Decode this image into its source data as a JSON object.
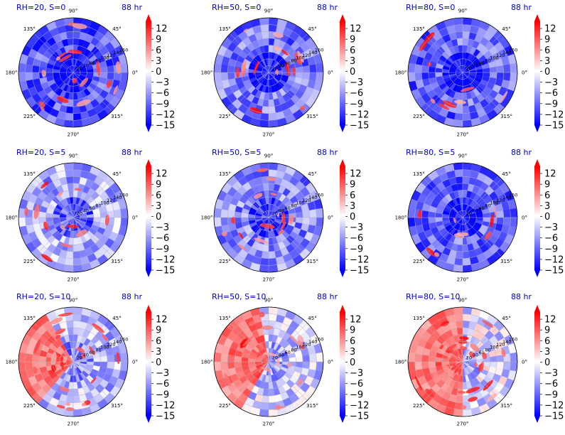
{
  "figure": {
    "layout": {
      "rows": 3,
      "cols": 3
    },
    "time_label": "88 hr",
    "colors": {
      "title": "#0000cc",
      "negative": "#0000ff",
      "neutral": "#ffffff",
      "positive": "#ff0000"
    }
  },
  "chart_data": [
    {
      "type": "heatmap",
      "projection": "polar",
      "title": "RH=20, S=0",
      "time_label": "88 hr",
      "rh": 20,
      "s": 0,
      "angle_ticks": [
        "90°",
        "45°",
        "0°",
        "315°",
        "270°",
        "225°",
        "180°",
        "135°"
      ],
      "radial_ticks": [
        20,
        40,
        60,
        80,
        100,
        120,
        140,
        160
      ],
      "rlim": [
        0,
        160
      ],
      "grid": true,
      "colorbar": {
        "ticks": [
          12,
          9,
          6,
          3,
          0,
          -3,
          -6,
          -9,
          -12,
          -15
        ],
        "range": [
          -15,
          14
        ],
        "extend": "both",
        "cmap": "bwr"
      }
    },
    {
      "type": "heatmap",
      "projection": "polar",
      "title": "RH=50, S=0",
      "time_label": "88 hr",
      "rh": 50,
      "s": 0,
      "angle_ticks": [
        "90°",
        "45°",
        "0°",
        "315°",
        "270°",
        "225°",
        "180°",
        "135°"
      ],
      "radial_ticks": [
        20,
        40,
        60,
        80,
        100,
        120,
        140,
        160
      ],
      "rlim": [
        0,
        160
      ],
      "grid": true,
      "colorbar": {
        "ticks": [
          12,
          9,
          6,
          3,
          0,
          -3,
          -6,
          -9,
          -12,
          -15
        ],
        "range": [
          -15,
          14
        ],
        "extend": "both",
        "cmap": "bwr"
      }
    },
    {
      "type": "heatmap",
      "projection": "polar",
      "title": "RH=80, S=0",
      "time_label": "88 hr",
      "rh": 80,
      "s": 0,
      "angle_ticks": [
        "90°",
        "45°",
        "0°",
        "315°",
        "270°",
        "225°",
        "180°",
        "135°"
      ],
      "radial_ticks": [
        20,
        40,
        60,
        80,
        100,
        120,
        140,
        160
      ],
      "rlim": [
        0,
        160
      ],
      "grid": true,
      "colorbar": {
        "ticks": [
          12,
          9,
          6,
          3,
          0,
          -3,
          -6,
          -9,
          -12,
          -15
        ],
        "range": [
          -15,
          14
        ],
        "extend": "both",
        "cmap": "bwr"
      }
    },
    {
      "type": "heatmap",
      "projection": "polar",
      "title": "RH=20, S=5",
      "time_label": "88 hr",
      "rh": 20,
      "s": 5,
      "angle_ticks": [
        "90°",
        "45°",
        "0°",
        "315°",
        "270°",
        "225°",
        "180°",
        "135°"
      ],
      "radial_ticks": [
        20,
        40,
        60,
        80,
        100,
        120,
        140,
        160
      ],
      "rlim": [
        0,
        160
      ],
      "grid": true,
      "colorbar": {
        "ticks": [
          12,
          9,
          6,
          3,
          0,
          -3,
          -6,
          -9,
          -12,
          -15
        ],
        "range": [
          -15,
          14
        ],
        "extend": "both",
        "cmap": "bwr"
      }
    },
    {
      "type": "heatmap",
      "projection": "polar",
      "title": "RH=50, S=5",
      "time_label": "88 hr",
      "rh": 50,
      "s": 5,
      "angle_ticks": [
        "90°",
        "45°",
        "0°",
        "315°",
        "270°",
        "225°",
        "180°",
        "135°"
      ],
      "radial_ticks": [
        20,
        40,
        60,
        80,
        100,
        120,
        140,
        160
      ],
      "rlim": [
        0,
        160
      ],
      "grid": true,
      "colorbar": {
        "ticks": [
          12,
          9,
          6,
          3,
          0,
          -3,
          -6,
          -9,
          -12,
          -15
        ],
        "range": [
          -15,
          14
        ],
        "extend": "both",
        "cmap": "bwr"
      }
    },
    {
      "type": "heatmap",
      "projection": "polar",
      "title": "RH=80, S=5",
      "time_label": "88 hr",
      "rh": 80,
      "s": 5,
      "angle_ticks": [
        "90°",
        "45°",
        "0°",
        "315°",
        "270°",
        "225°",
        "180°",
        "135°"
      ],
      "radial_ticks": [
        20,
        40,
        60,
        80,
        100,
        120,
        140,
        160
      ],
      "rlim": [
        0,
        160
      ],
      "grid": true,
      "colorbar": {
        "ticks": [
          12,
          9,
          6,
          3,
          0,
          -3,
          -6,
          -9,
          -12,
          -15
        ],
        "range": [
          -15,
          14
        ],
        "extend": "both",
        "cmap": "bwr"
      }
    },
    {
      "type": "heatmap",
      "projection": "polar",
      "title": "RH=20, S=10",
      "time_label": "88 hr",
      "rh": 20,
      "s": 10,
      "angle_ticks": [
        "90°",
        "45°",
        "0°",
        "315°",
        "270°",
        "225°",
        "180°",
        "135°"
      ],
      "radial_ticks": [
        20,
        40,
        60,
        80,
        100,
        120,
        140,
        160
      ],
      "rlim": [
        0,
        160
      ],
      "grid": true,
      "colorbar": {
        "ticks": [
          12,
          9,
          6,
          3,
          0,
          -3,
          -6,
          -9,
          -12,
          -15
        ],
        "range": [
          -15,
          14
        ],
        "extend": "both",
        "cmap": "bwr"
      }
    },
    {
      "type": "heatmap",
      "projection": "polar",
      "title": "RH=50, S=10",
      "time_label": "88 hr",
      "rh": 50,
      "s": 10,
      "angle_ticks": [
        "90°",
        "45°",
        "0°",
        "315°",
        "270°",
        "225°",
        "180°",
        "135°"
      ],
      "radial_ticks": [
        20,
        40,
        60,
        80,
        100,
        120,
        140,
        160
      ],
      "rlim": [
        0,
        160
      ],
      "grid": true,
      "colorbar": {
        "ticks": [
          12,
          9,
          6,
          3,
          0,
          -3,
          -6,
          -9,
          -12,
          -15
        ],
        "range": [
          -15,
          14
        ],
        "extend": "both",
        "cmap": "bwr"
      }
    },
    {
      "type": "heatmap",
      "projection": "polar",
      "title": "RH=80, S=10",
      "time_label": "88 hr",
      "rh": 80,
      "s": 10,
      "angle_ticks": [
        "90°",
        "45°",
        "0°",
        "315°",
        "270°",
        "225°",
        "180°",
        "135°"
      ],
      "radial_ticks": [
        20,
        40,
        60,
        80,
        100,
        120,
        140,
        160
      ],
      "rlim": [
        0,
        160
      ],
      "grid": true,
      "colorbar": {
        "ticks": [
          12,
          9,
          6,
          3,
          0,
          -3,
          -6,
          -9,
          -12,
          -15
        ],
        "range": [
          -15,
          14
        ],
        "extend": "both",
        "cmap": "bwr"
      }
    }
  ]
}
